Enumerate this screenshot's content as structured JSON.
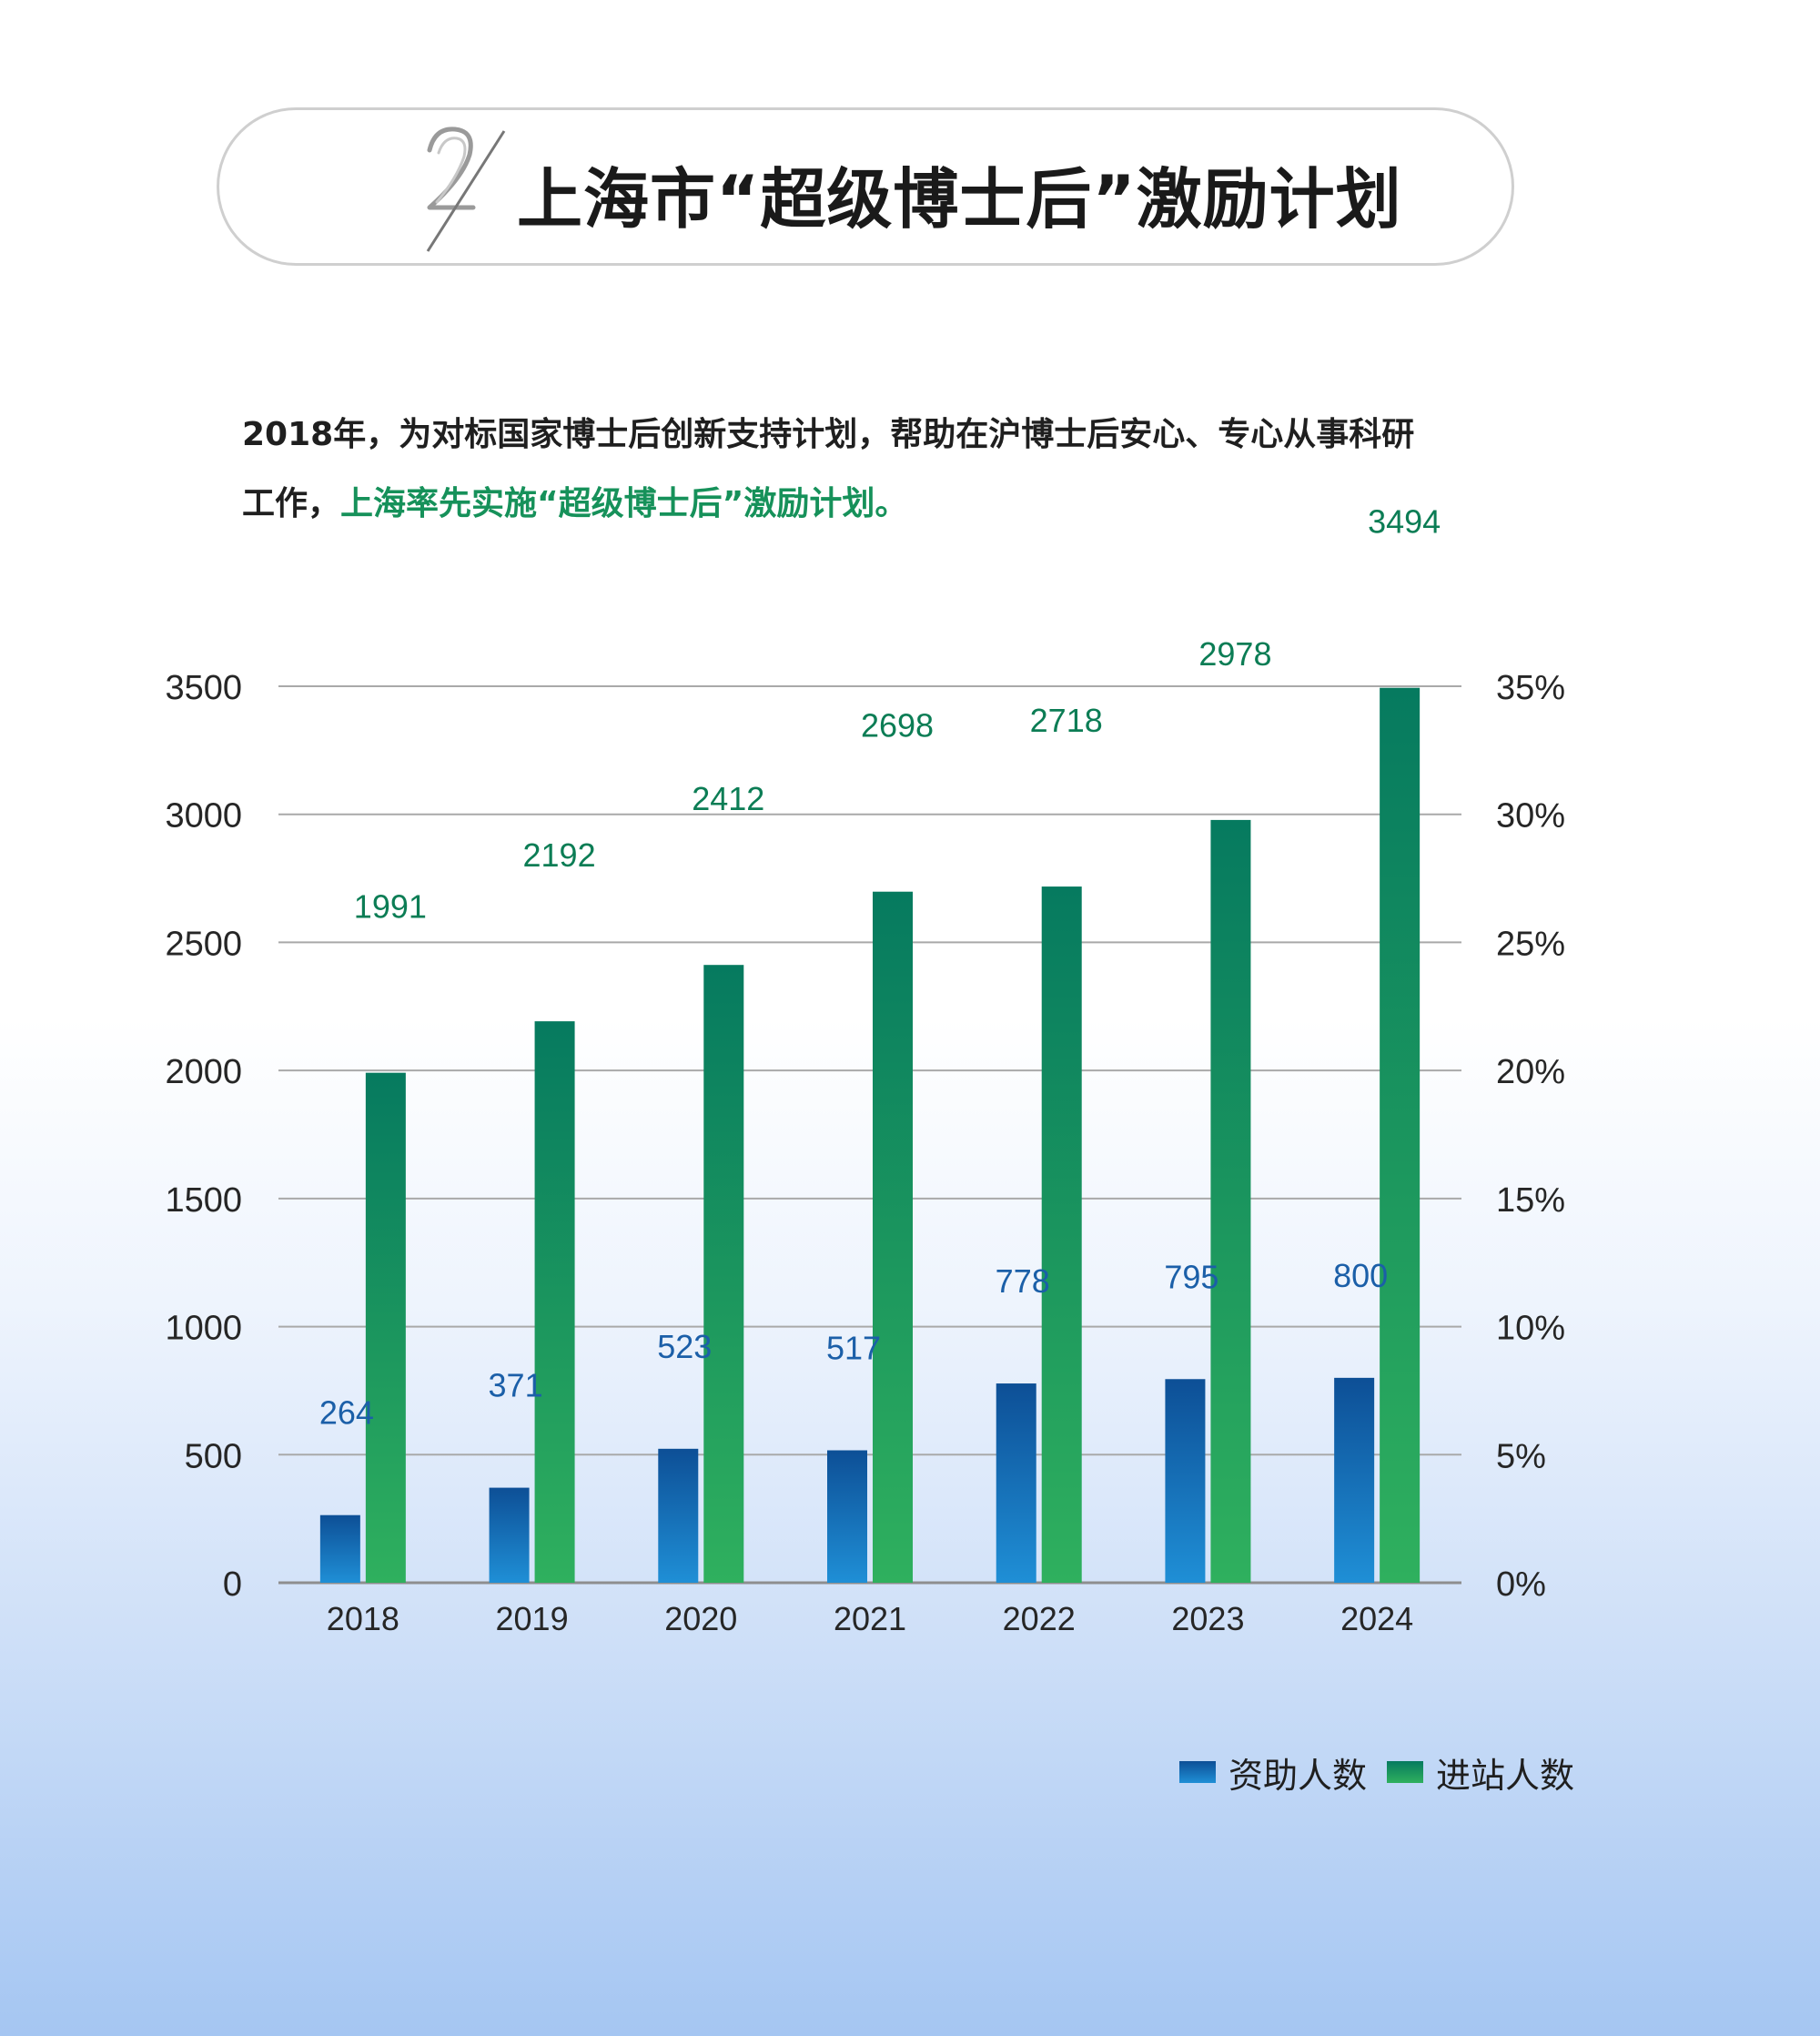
{
  "header": {
    "number": "2",
    "title": "上海市“超级博士后”激励计划"
  },
  "intro": {
    "line1": "2018年，为对标国家博士后创新支持计划，帮助在沪博士后安心、专心从事科研",
    "line2_prefix": "工作，",
    "line2_highlight": "上海率先实施“超级博士后”激励计划。"
  },
  "chart_data": {
    "type": "bar",
    "categories": [
      "2018",
      "2019",
      "2020",
      "2021",
      "2022",
      "2023",
      "2024"
    ],
    "series": [
      {
        "name": "资助人数",
        "values": [
          264,
          371,
          523,
          517,
          778,
          795,
          800
        ],
        "color": "#0a5aa3",
        "label_color": "#1b5fa8"
      },
      {
        "name": "进站人数",
        "values": [
          1991,
          2192,
          2412,
          2698,
          2718,
          2978,
          3494
        ],
        "color": "#0e8a5c",
        "label_color": "#0c7d55"
      }
    ],
    "ylim": [
      0,
      3500
    ],
    "yticks": [
      "0",
      "500",
      "1000",
      "1500",
      "2000",
      "2500",
      "3000",
      "3500"
    ],
    "y2lim": [
      0,
      35
    ],
    "y2ticks": [
      "0%",
      "5%",
      "10%",
      "15%",
      "20%",
      "25%",
      "30%",
      "35%"
    ],
    "grid": true,
    "legend_position": "bottom-right"
  }
}
